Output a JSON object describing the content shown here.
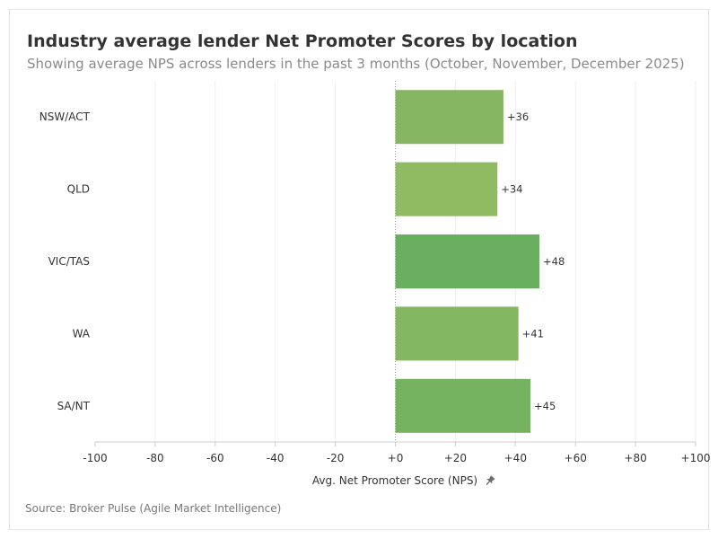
{
  "chart_data": {
    "type": "bar",
    "orientation": "horizontal",
    "title": "Industry average lender Net Promoter Scores by location",
    "subtitle": "Showing average NPS across lenders in the past 3 months (October, November, December 2025)",
    "xlabel": "Avg. Net Promoter Score (NPS)",
    "ylabel": "",
    "xlim": [
      -100,
      100
    ],
    "x_ticks": [
      -100,
      -80,
      -60,
      -40,
      -20,
      0,
      20,
      40,
      60,
      80,
      100
    ],
    "x_tick_labels": [
      "-100",
      "-80",
      "-60",
      "-40",
      "-20",
      "+0",
      "+20",
      "+40",
      "+60",
      "+80",
      "+100"
    ],
    "categories": [
      "NSW/ACT",
      "QLD",
      "VIC/TAS",
      "WA",
      "SA/NT"
    ],
    "values": [
      36,
      34,
      48,
      41,
      45
    ],
    "data_labels": [
      "+36",
      "+34",
      "+48",
      "+41",
      "+45"
    ],
    "bar_colors": [
      "#86b661",
      "#90bb63",
      "#6aaf60",
      "#84b761",
      "#75b260"
    ],
    "grid": true,
    "legend": "none",
    "source": "Source: Broker Pulse (Agile Market Intelligence)",
    "axis_icon": "pin-icon"
  }
}
